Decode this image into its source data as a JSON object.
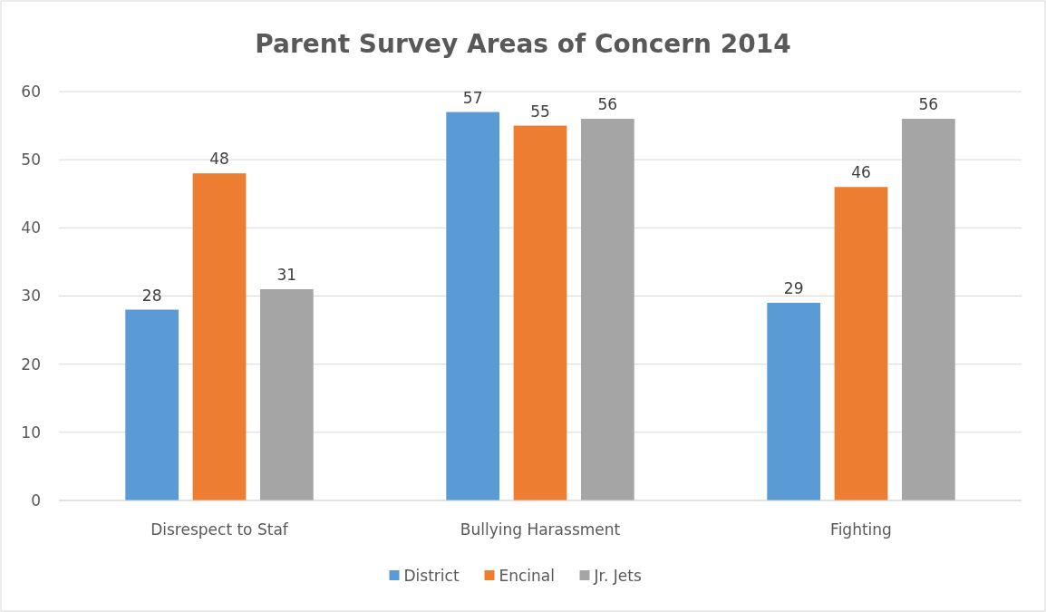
{
  "chart_data": {
    "type": "bar",
    "title": "Parent Survey Areas of Concern 2014",
    "categories": [
      "Disrespect to Staf",
      "Bullying Harassment",
      "Fighting"
    ],
    "series": [
      {
        "name": "District",
        "color": "#5b9bd5",
        "values": [
          28,
          57,
          29
        ]
      },
      {
        "name": "Encinal",
        "color": "#ed7d31",
        "values": [
          48,
          55,
          46
        ]
      },
      {
        "name": "Jr. Jets",
        "color": "#a5a5a5",
        "values": [
          31,
          56,
          56
        ]
      }
    ],
    "ylim": [
      0,
      60
    ],
    "yticks": [
      0,
      10,
      20,
      30,
      40,
      50,
      60
    ],
    "grid": "y",
    "legend": "bottom",
    "data_labels": true
  }
}
